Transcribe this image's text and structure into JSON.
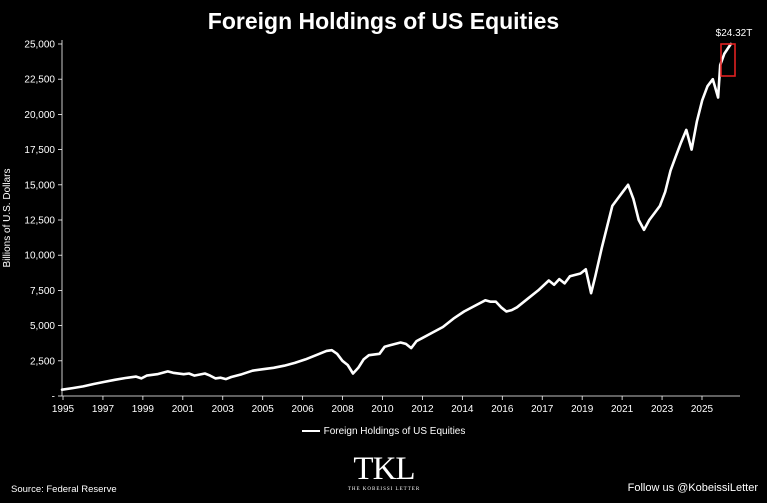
{
  "chart_data": {
    "type": "line",
    "title": "Foreign Holdings of US Equities",
    "xlabel": "",
    "ylabel": "Billions of U.S. Dollars",
    "ylim": [
      0,
      25000
    ],
    "xlim": [
      1995.0,
      2026.8
    ],
    "yticks": [
      0,
      2500,
      5000,
      7500,
      10000,
      12500,
      15000,
      17500,
      20000,
      22500,
      25000
    ],
    "ytick_labels": [
      "-",
      "2,500",
      "5,000",
      "7,500",
      "10,000",
      "12,500",
      "15,000",
      "17,500",
      "20,000",
      "22,500",
      "25,000"
    ],
    "xtick_labels": [
      "1995",
      "1997",
      "1999",
      "2001",
      "2003",
      "2005",
      "2006",
      "2008",
      "2010",
      "2012",
      "2014",
      "2016",
      "2017",
      "2019",
      "2021",
      "2023",
      "2025"
    ],
    "grid": false,
    "legend_position": "bottom",
    "annotation": "$24.32T",
    "series": [
      {
        "name": "Foreign Holdings of US Equities",
        "color": "#ffffff",
        "x": [
          1995.0,
          1995.5,
          1996.0,
          1996.5,
          1997.0,
          1997.5,
          1998.0,
          1998.5,
          1998.75,
          1999.0,
          1999.5,
          2000.0,
          2000.25,
          2000.75,
          2001.0,
          2001.25,
          2001.75,
          2002.0,
          2002.25,
          2002.5,
          2002.75,
          2003.0,
          2003.5,
          2004.0,
          2004.5,
          2005.0,
          2005.5,
          2006.0,
          2006.5,
          2007.0,
          2007.5,
          2007.75,
          2008.0,
          2008.25,
          2008.5,
          2008.75,
          2009.0,
          2009.25,
          2009.5,
          2010.0,
          2010.25,
          2010.5,
          2011.0,
          2011.25,
          2011.5,
          2011.75,
          2012.0,
          2012.5,
          2013.0,
          2013.5,
          2014.0,
          2014.5,
          2015.0,
          2015.25,
          2015.5,
          2015.75,
          2016.0,
          2016.25,
          2016.5,
          2017.0,
          2017.5,
          2018.0,
          2018.25,
          2018.5,
          2018.75,
          2019.0,
          2019.25,
          2019.5,
          2019.75,
          2020.0,
          2020.2,
          2020.5,
          2020.75,
          2021.0,
          2021.25,
          2021.5,
          2021.75,
          2022.0,
          2022.25,
          2022.5,
          2022.75,
          2023.0,
          2023.25,
          2023.5,
          2023.75,
          2024.0,
          2024.25,
          2024.5,
          2024.75,
          2025.0,
          2025.25,
          2025.5,
          2025.75,
          2026.0,
          2026.1,
          2026.3,
          2026.6
        ],
        "values": [
          450,
          560,
          680,
          850,
          1000,
          1150,
          1280,
          1380,
          1250,
          1450,
          1550,
          1750,
          1650,
          1550,
          1600,
          1450,
          1600,
          1450,
          1250,
          1300,
          1200,
          1350,
          1550,
          1800,
          1900,
          2000,
          2150,
          2350,
          2600,
          2900,
          3200,
          3250,
          3000,
          2500,
          2200,
          1600,
          2000,
          2600,
          2900,
          3000,
          3500,
          3600,
          3800,
          3700,
          3400,
          3900,
          4100,
          4500,
          4900,
          5500,
          6000,
          6400,
          6800,
          6700,
          6700,
          6300,
          6000,
          6100,
          6300,
          6900,
          7500,
          8200,
          7900,
          8300,
          8000,
          8500,
          8600,
          8700,
          9000,
          7300,
          8500,
          10500,
          12000,
          13500,
          14000,
          14500,
          15000,
          14000,
          12500,
          11800,
          12500,
          13000,
          13500,
          14500,
          16000,
          17000,
          18000,
          18900,
          17500,
          19500,
          21000,
          22000,
          22500,
          21200,
          23500,
          24320,
          25000
        ]
      }
    ]
  },
  "legend": {
    "label": "Foreign Holdings of US Equities"
  },
  "footer": {
    "source": "Source: Federal Reserve",
    "follow": "Follow us @KobeissiLetter",
    "logo_mark": "TKL",
    "logo_sub": "THE KOBEISSI LETTER"
  }
}
